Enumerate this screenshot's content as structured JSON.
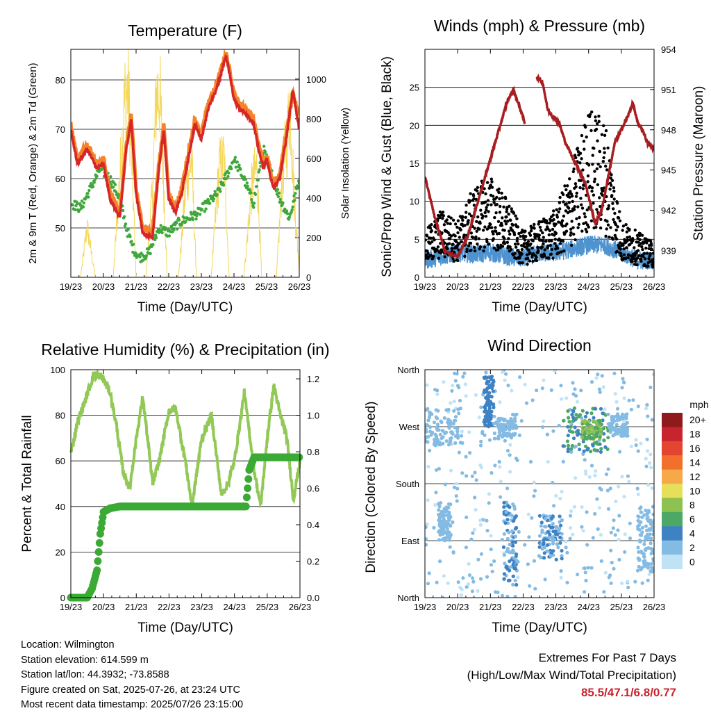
{
  "time_axis": {
    "ticks": [
      "19/23",
      "20/23",
      "21/23",
      "22/23",
      "23/23",
      "24/23",
      "25/23",
      "26/23"
    ],
    "xlabel": "Time (Day/UTC)"
  },
  "chart_data": [
    {
      "id": "temperature",
      "type": "line",
      "title": "Temperature (F)",
      "xlabel": "Time (Day/UTC)",
      "ylabel_left": "2m & 9m T (Red, Orange) & 2m Td (Green)",
      "ylabel_right": "Solar Insolation (Yellow)",
      "x": "days since start (0=19/23 ... 7=26/23)",
      "ylim_left": [
        40,
        86.2
      ],
      "ylim_right": [
        0,
        1150
      ],
      "yticks_left": [
        50,
        60,
        70,
        80
      ],
      "yticks_right": [
        0,
        200,
        400,
        600,
        800,
        1000
      ],
      "series": [
        {
          "name": "2m T",
          "color": "#d62728",
          "axis": "left",
          "x": [
            0,
            0.2,
            0.5,
            0.8,
            1,
            1.2,
            1.5,
            1.7,
            1.85,
            2,
            2.2,
            2.5,
            2.7,
            2.85,
            3,
            3.2,
            3.4,
            3.6,
            3.8,
            4,
            4.2,
            4.4,
            4.6,
            4.75,
            4.9,
            5,
            5.2,
            5.4,
            5.6,
            5.75,
            5.9,
            6,
            6.2,
            6.4,
            6.6,
            6.8,
            7
          ],
          "y": [
            70,
            63,
            66,
            62,
            63,
            56,
            52,
            66,
            72,
            57,
            49,
            48,
            62,
            70,
            56,
            53,
            57,
            64,
            71,
            68,
            74,
            77,
            81,
            85,
            80,
            76,
            74,
            73,
            71,
            66,
            62,
            64,
            58,
            60,
            68,
            78,
            70
          ]
        },
        {
          "name": "9m T",
          "color": "#f4832a",
          "axis": "left",
          "x": [
            0,
            0.2,
            0.5,
            0.8,
            1,
            1.2,
            1.5,
            1.7,
            1.85,
            2,
            2.2,
            2.5,
            2.7,
            2.85,
            3,
            3.2,
            3.4,
            3.6,
            3.8,
            4,
            4.2,
            4.4,
            4.6,
            4.75,
            4.9,
            5,
            5.2,
            5.4,
            5.6,
            5.75,
            5.9,
            6,
            6.2,
            6.4,
            6.6,
            6.8,
            7
          ],
          "y": [
            71,
            64,
            67,
            63,
            64,
            57,
            53,
            67,
            73,
            58,
            50,
            49,
            63,
            71,
            57,
            54,
            58,
            65,
            72,
            69,
            75,
            78,
            82,
            85.5,
            81,
            77,
            75,
            74,
            72,
            67,
            63,
            65,
            59,
            61,
            69,
            77,
            73
          ]
        },
        {
          "name": "2m Td",
          "color": "#3fa83c",
          "axis": "left",
          "x": [
            0,
            0.3,
            0.6,
            0.9,
            1.2,
            1.5,
            1.7,
            1.9,
            2.1,
            2.4,
            2.7,
            3,
            3.3,
            3.6,
            3.9,
            4.2,
            4.5,
            4.8,
            5,
            5.3,
            5.6,
            5.9,
            6.1,
            6.4,
            6.7,
            7
          ],
          "y": [
            55,
            54,
            58,
            62,
            60,
            56,
            50,
            46,
            44,
            45,
            50,
            49,
            51,
            52,
            53,
            55,
            57,
            61,
            64,
            60,
            55,
            66,
            62,
            56,
            52,
            60
          ]
        },
        {
          "name": "Solar Insolation",
          "color": "#f5d75a",
          "axis": "right",
          "x": [
            0,
            0.3,
            0.5,
            0.75,
            1,
            1.3,
            1.5,
            1.65,
            1.75,
            1.85,
            2,
            2.3,
            2.5,
            2.62,
            2.72,
            2.82,
            2.95,
            3.3,
            3.55,
            3.7,
            3.85,
            4.3,
            4.55,
            4.7,
            4.85,
            5.3,
            5.55,
            5.7,
            5.85,
            6.3,
            6.5,
            6.62,
            6.72,
            6.85,
            7
          ],
          "y": [
            0,
            0,
            300,
            0,
            0,
            0,
            600,
            1050,
            1110,
            800,
            0,
            0,
            500,
            1080,
            1110,
            700,
            0,
            0,
            600,
            700,
            0,
            0,
            650,
            700,
            0,
            0,
            550,
            650,
            0,
            0,
            650,
            800,
            1050,
            450,
            50
          ]
        }
      ]
    },
    {
      "id": "winds",
      "type": "scatter",
      "title": "Winds (mph) & Pressure (mb)",
      "xlabel": "Time (Day/UTC)",
      "ylabel_left": "Sonic/Prop Wind & Gust (Blue, Black)",
      "ylabel_right": "Station Pressure (Maroon)",
      "ylim_left": [
        0,
        30
      ],
      "ylim_right": [
        937,
        954
      ],
      "yticks_left": [
        0,
        5,
        10,
        15,
        20,
        25
      ],
      "yticks_right": [
        939,
        942,
        945,
        948,
        951,
        954
      ],
      "series": [
        {
          "name": "Sonic/Prop Wind",
          "color": "#4e93d0",
          "axis": "left",
          "x": [
            0,
            0.5,
            1,
            1.5,
            2,
            2.5,
            3,
            3.5,
            4,
            4.5,
            5,
            5.5,
            6,
            6.5,
            7
          ],
          "y": [
            2,
            2.5,
            3,
            2.8,
            3,
            2.5,
            2.2,
            3,
            3,
            3.5,
            4,
            4,
            3,
            2,
            2
          ]
        },
        {
          "name": "Gust",
          "color": "#000000",
          "axis": "left",
          "x": [
            0,
            0.5,
            1,
            1.5,
            2,
            2.5,
            3,
            3.5,
            4,
            4.5,
            5,
            5.5,
            6,
            6.5,
            7
          ],
          "y": [
            4,
            6,
            5,
            8,
            9,
            7,
            4,
            5,
            6,
            10,
            15,
            14,
            5,
            4,
            3
          ]
        },
        {
          "name": "Station Pressure",
          "color": "#a61d22",
          "axis": "right",
          "x": [
            0,
            0.3,
            0.6,
            1,
            1.3,
            1.6,
            1.9,
            2.2,
            2.5,
            2.7,
            2.85,
            3.05,
            3.15,
            3.4,
            3.6,
            3.75,
            3.9,
            4.1,
            4.3,
            4.5,
            4.7,
            4.9,
            5.05,
            5.2,
            5.4,
            5.6,
            5.8,
            6,
            6.2,
            6.35,
            6.5,
            6.65,
            6.8,
            7
          ],
          "y": [
            944.5,
            941.5,
            939,
            938.5,
            940,
            942.5,
            945,
            947.5,
            950,
            951,
            950,
            948.5,
            null,
            952,
            951.5,
            949.5,
            949,
            948.5,
            947,
            946,
            945,
            944,
            942.5,
            941,
            942,
            944.5,
            947,
            948,
            949,
            950,
            948.5,
            948,
            947,
            946.5
          ]
        }
      ]
    },
    {
      "id": "humidity",
      "type": "line",
      "title": "Relative Humidity (%) & Precipitation (in)",
      "xlabel": "Time (Day/UTC)",
      "ylabel_left": "Percent & Total Rainfall",
      "ylim_left": [
        0,
        100
      ],
      "ylim_right": [
        0,
        1.25
      ],
      "yticks_left": [
        0,
        20,
        40,
        60,
        80,
        100
      ],
      "yticks_right": [
        0.0,
        0.2,
        0.4,
        0.6,
        0.8,
        1.0,
        1.2
      ],
      "series": [
        {
          "name": "Relative Humidity",
          "color": "#92c855",
          "axis": "left",
          "x": [
            0,
            0.2,
            0.45,
            0.7,
            0.95,
            1.2,
            1.4,
            1.6,
            1.8,
            2,
            2.2,
            2.5,
            2.7,
            3,
            3.2,
            3.5,
            3.7,
            4,
            4.3,
            4.6,
            4.8,
            5,
            5.3,
            5.6,
            5.8,
            6,
            6.2,
            6.4,
            6.6,
            6.8,
            7
          ],
          "y": [
            63,
            77,
            87,
            98,
            97,
            90,
            75,
            55,
            48,
            70,
            88,
            50,
            60,
            82,
            83,
            60,
            40,
            70,
            80,
            45,
            50,
            60,
            90,
            56,
            40,
            70,
            93,
            80,
            70,
            43,
            60
          ]
        },
        {
          "name": "Total Precipitation",
          "color": "#3aaa35",
          "axis": "right",
          "x": [
            0,
            0.3,
            0.5,
            0.65,
            0.8,
            0.9,
            1,
            1.2,
            1.5,
            2,
            3,
            4,
            5,
            5.35,
            5.45,
            5.6,
            6,
            7
          ],
          "y": [
            0,
            0,
            0,
            0.05,
            0.15,
            0.35,
            0.47,
            0.49,
            0.5,
            0.5,
            0.5,
            0.5,
            0.5,
            0.5,
            0.7,
            0.77,
            0.77,
            0.77
          ]
        }
      ]
    },
    {
      "id": "wind_direction",
      "type": "scatter",
      "title": "Wind Direction",
      "xlabel": "Time (Day/UTC)",
      "ylabel": "Direction (Colored By Speed)",
      "yticks": [
        "North",
        "East",
        "South",
        "West",
        "North"
      ],
      "ylim": [
        0,
        360
      ],
      "colorbar": {
        "title": "mph",
        "labels": [
          "20+",
          "18",
          "16",
          "14",
          "12",
          "10",
          "8",
          "6",
          "4",
          "2",
          "0"
        ],
        "colors": [
          "#8e1a1c",
          "#c8242f",
          "#e34630",
          "#f3702c",
          "#f7a849",
          "#e5df5a",
          "#8dc152",
          "#4ca864",
          "#3f82c4",
          "#84bbe3",
          "#bfe2f5"
        ]
      },
      "clusters": [
        {
          "x_range": [
            0,
            1.1
          ],
          "dir_range": [
            240,
            300
          ],
          "speed": 2
        },
        {
          "x_range": [
            0.4,
            0.8
          ],
          "dir_range": [
            90,
            150
          ],
          "speed": 2
        },
        {
          "x_range": [
            1.8,
            2.1
          ],
          "dir_range": [
            270,
            350
          ],
          "speed": 4
        },
        {
          "x_range": [
            2.1,
            2.8
          ],
          "dir_range": [
            250,
            290
          ],
          "speed": 2
        },
        {
          "x_range": [
            2.4,
            2.8
          ],
          "dir_range": [
            20,
            150
          ],
          "speed": 3
        },
        {
          "x_range": [
            3.5,
            4.2
          ],
          "dir_range": [
            60,
            130
          ],
          "speed": 3
        },
        {
          "x_range": [
            4.2,
            5.6
          ],
          "dir_range": [
            230,
            300
          ],
          "speed": 5
        },
        {
          "x_range": [
            4.8,
            5.4
          ],
          "dir_range": [
            250,
            280
          ],
          "speed": 7
        },
        {
          "x_range": [
            5.6,
            6.2
          ],
          "dir_range": [
            255,
            290
          ],
          "speed": 2
        },
        {
          "x_range": [
            6.5,
            7
          ],
          "dir_range": [
            40,
            140
          ],
          "speed": 2
        }
      ]
    }
  ],
  "station": {
    "location": "Location: Wilmington",
    "elevation": "Station elevation: 614.599 m",
    "latlon": "Station lat/lon: 44.3932; -73.8588",
    "created": "Figure created on Sat, 2025-07-26, at 23:24 UTC",
    "recent": "Most recent data timestamp: 2025/07/26 23:15:00"
  },
  "extremes": {
    "title": "Extremes For Past 7 Days",
    "subtitle": "(High/Low/Max Wind/Total Precipitation)",
    "values": "85.5/47.1/6.8/0.77",
    "value_color": "#c8242f"
  }
}
